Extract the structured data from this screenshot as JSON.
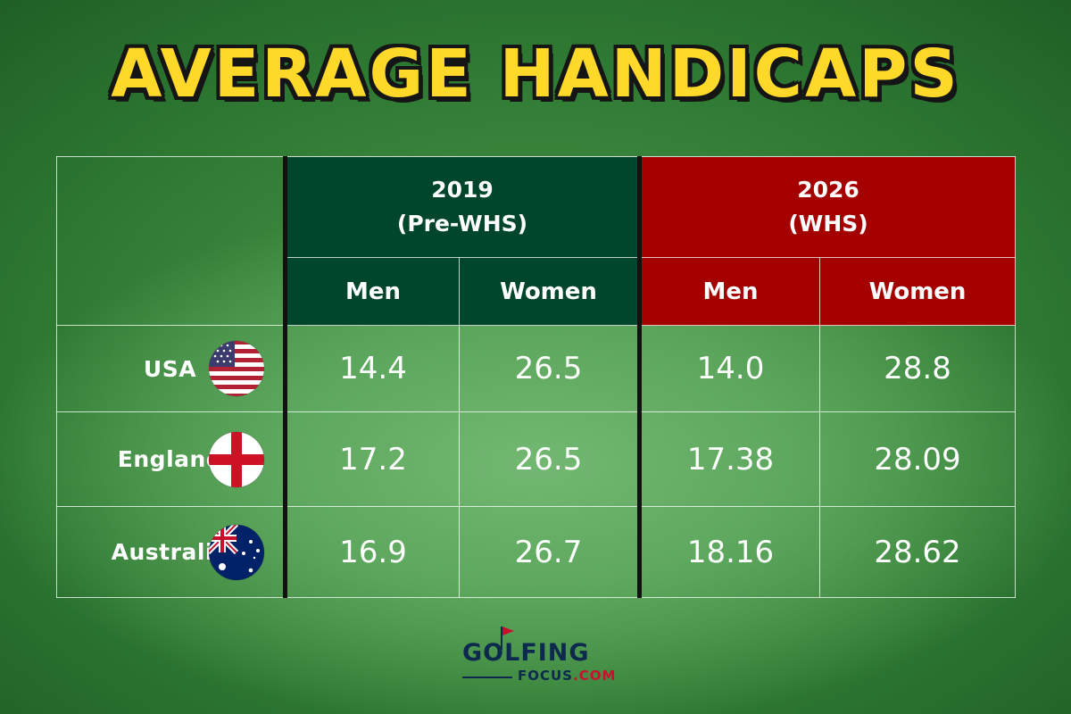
{
  "title": "AVERAGE HANDICAPS",
  "chart_data": {
    "type": "table",
    "title": "AVERAGE HANDICAPS",
    "period_groups": [
      {
        "year": "2019",
        "note": "(Pre-WHS)",
        "color": "#00462b",
        "columns": [
          "Men",
          "Women"
        ]
      },
      {
        "year": "2026",
        "note": "(WHS)",
        "color": "#a50000",
        "columns": [
          "Men",
          "Women"
        ]
      }
    ],
    "rows": [
      {
        "country": "USA",
        "flag": "usa-flag-icon",
        "values": [
          "14.4",
          "26.5",
          "14.0",
          "28.8"
        ]
      },
      {
        "country": "England",
        "flag": "england-flag-icon",
        "values": [
          "17.2",
          "26.5",
          "17.38",
          "28.09"
        ]
      },
      {
        "country": "Australia",
        "flag": "australia-flag-icon",
        "values": [
          "16.9",
          "26.7",
          "18.16",
          "28.62"
        ]
      }
    ]
  },
  "logo": {
    "main_text": "GOLFING",
    "sub_text": "FOCUS",
    "sub_suffix": ".COM"
  },
  "colors": {
    "title": "#ffd92a",
    "header_2019": "#00462b",
    "header_2026": "#a50000",
    "logo_text": "#0d2a4e",
    "logo_accent": "#c8102e"
  }
}
